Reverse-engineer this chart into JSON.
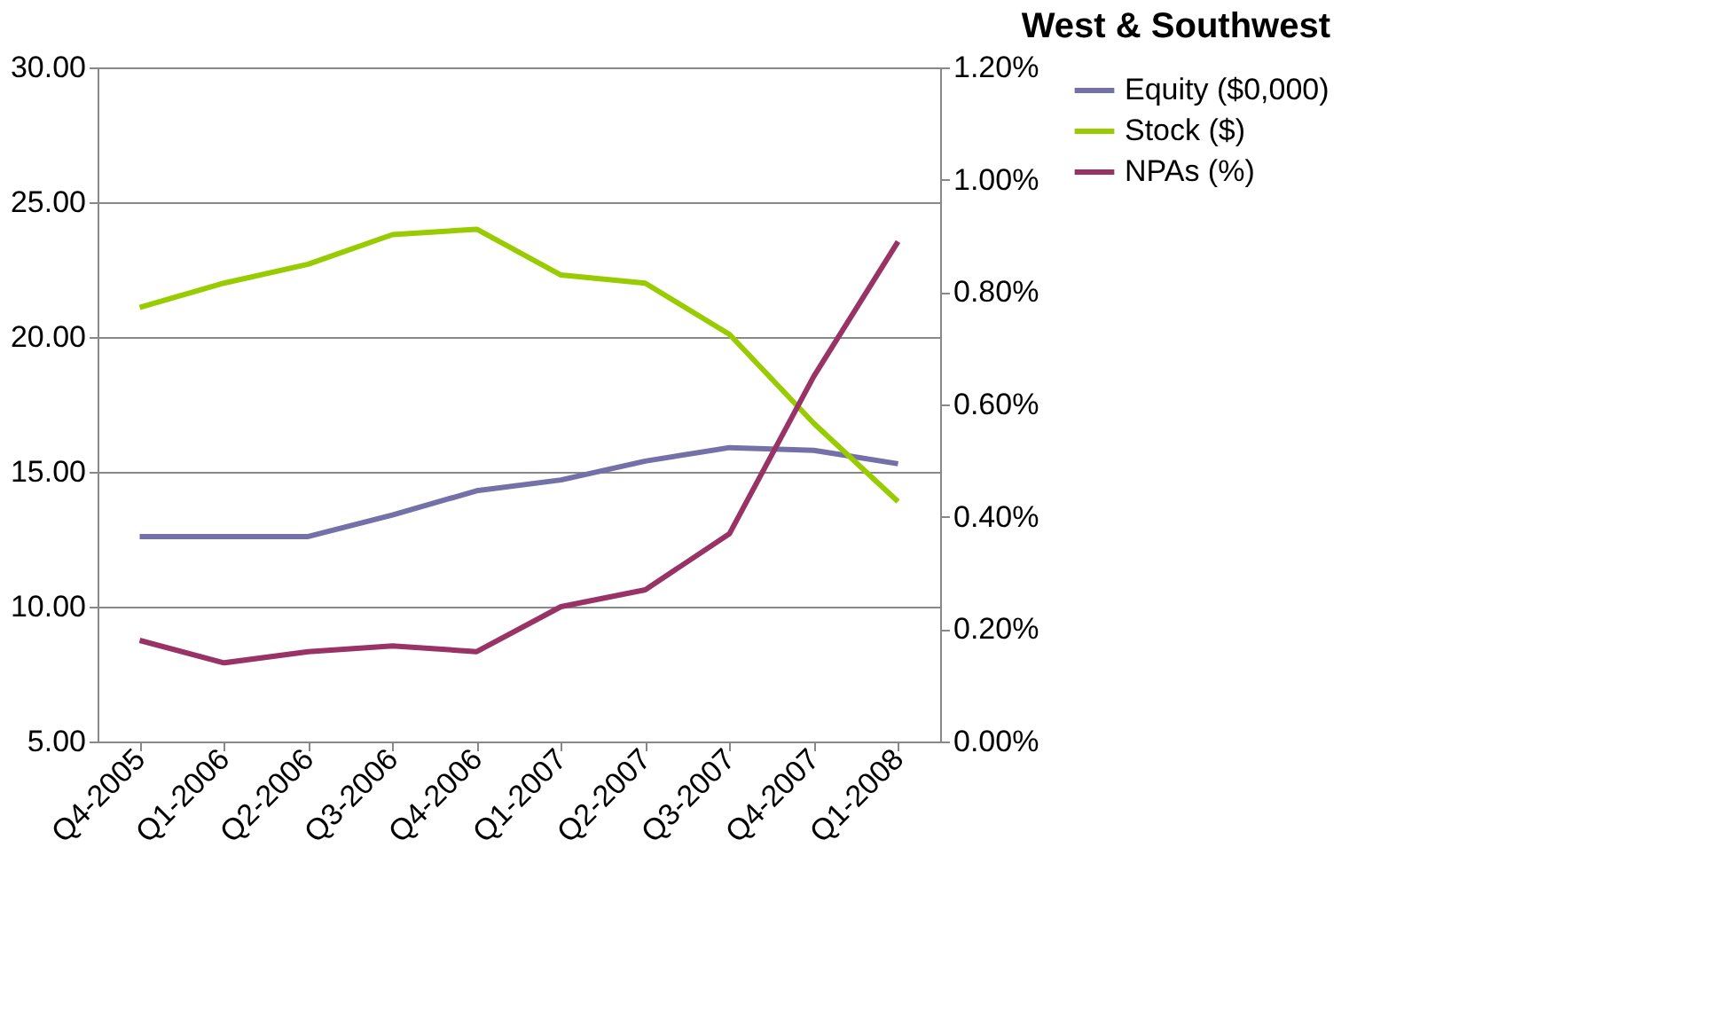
{
  "chart_data": {
    "type": "line",
    "title": "West & Southwest",
    "categories": [
      "Q4-2005",
      "Q1-2006",
      "Q2-2006",
      "Q3-2006",
      "Q4-2006",
      "Q1-2007",
      "Q2-2007",
      "Q3-2007",
      "Q4-2007",
      "Q1-2008"
    ],
    "series": [
      {
        "name": "Equity ($0,000)",
        "color": "#7470a8",
        "values": [
          12.6,
          12.6,
          12.6,
          13.4,
          14.3,
          14.7,
          15.4,
          15.9,
          15.8,
          15.3
        ]
      },
      {
        "name": "Stock ($)",
        "color": "#99cc00",
        "values": [
          21.1,
          22.0,
          22.7,
          23.8,
          24.0,
          22.3,
          22.0,
          20.1,
          16.8,
          13.9
        ]
      },
      {
        "name": "NPAs (%)",
        "color": "#993366",
        "axis": "y2",
        "values": [
          0.18,
          0.14,
          0.16,
          0.17,
          0.16,
          0.24,
          0.27,
          0.37,
          0.65,
          0.89
        ]
      }
    ],
    "ylim": [
      5,
      30
    ],
    "yticks": [
      {
        "value": 5,
        "label": "5.00"
      },
      {
        "value": 10,
        "label": "10.00"
      },
      {
        "value": 15,
        "label": "15.00"
      },
      {
        "value": 20,
        "label": "20.00"
      },
      {
        "value": 25,
        "label": "25.00"
      },
      {
        "value": 30,
        "label": "30.00"
      }
    ],
    "y2lim": [
      0,
      1.2
    ],
    "y2ticks": [
      {
        "value": 0,
        "label": "0.00%"
      },
      {
        "value": 0.2,
        "label": "0.20%"
      },
      {
        "value": 0.4,
        "label": "0.40%"
      },
      {
        "value": 0.6,
        "label": "0.60%"
      },
      {
        "value": 0.8,
        "label": "0.80%"
      },
      {
        "value": 1.0,
        "label": "1.00%"
      },
      {
        "value": 1.2,
        "label": "1.20%"
      }
    ],
    "grid": "y",
    "legend": "right",
    "marker": "none",
    "line_style": "solid"
  }
}
